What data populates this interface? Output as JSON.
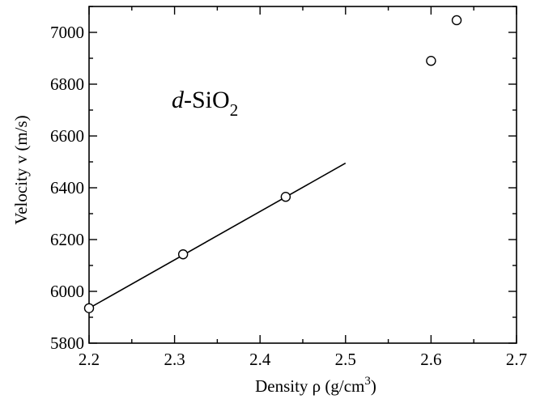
{
  "chart_data": {
    "type": "scatter",
    "xlabel_main": "Density ρ (g/cm",
    "xlabel_sup": "3",
    "xlabel_tail": ")",
    "ylabel": "Velocity v (m/s)",
    "annotation_italic": "d",
    "annotation_main": "-SiO",
    "annotation_sub": "2",
    "xlim": [
      2.2,
      2.7
    ],
    "ylim": [
      5800,
      7100
    ],
    "xticks": [
      "2.2",
      "2.3",
      "2.4",
      "2.5",
      "2.6",
      "2.7"
    ],
    "yticks": [
      "5800",
      "6000",
      "6200",
      "6400",
      "6600",
      "6800",
      "7000"
    ],
    "points": [
      {
        "x": 2.2,
        "y": 5935
      },
      {
        "x": 2.31,
        "y": 6143
      },
      {
        "x": 2.43,
        "y": 6365
      },
      {
        "x": 2.6,
        "y": 6890
      },
      {
        "x": 2.63,
        "y": 7047
      }
    ],
    "fit_line": {
      "x": [
        2.2,
        2.5
      ],
      "y": [
        5935,
        6495
      ]
    }
  }
}
